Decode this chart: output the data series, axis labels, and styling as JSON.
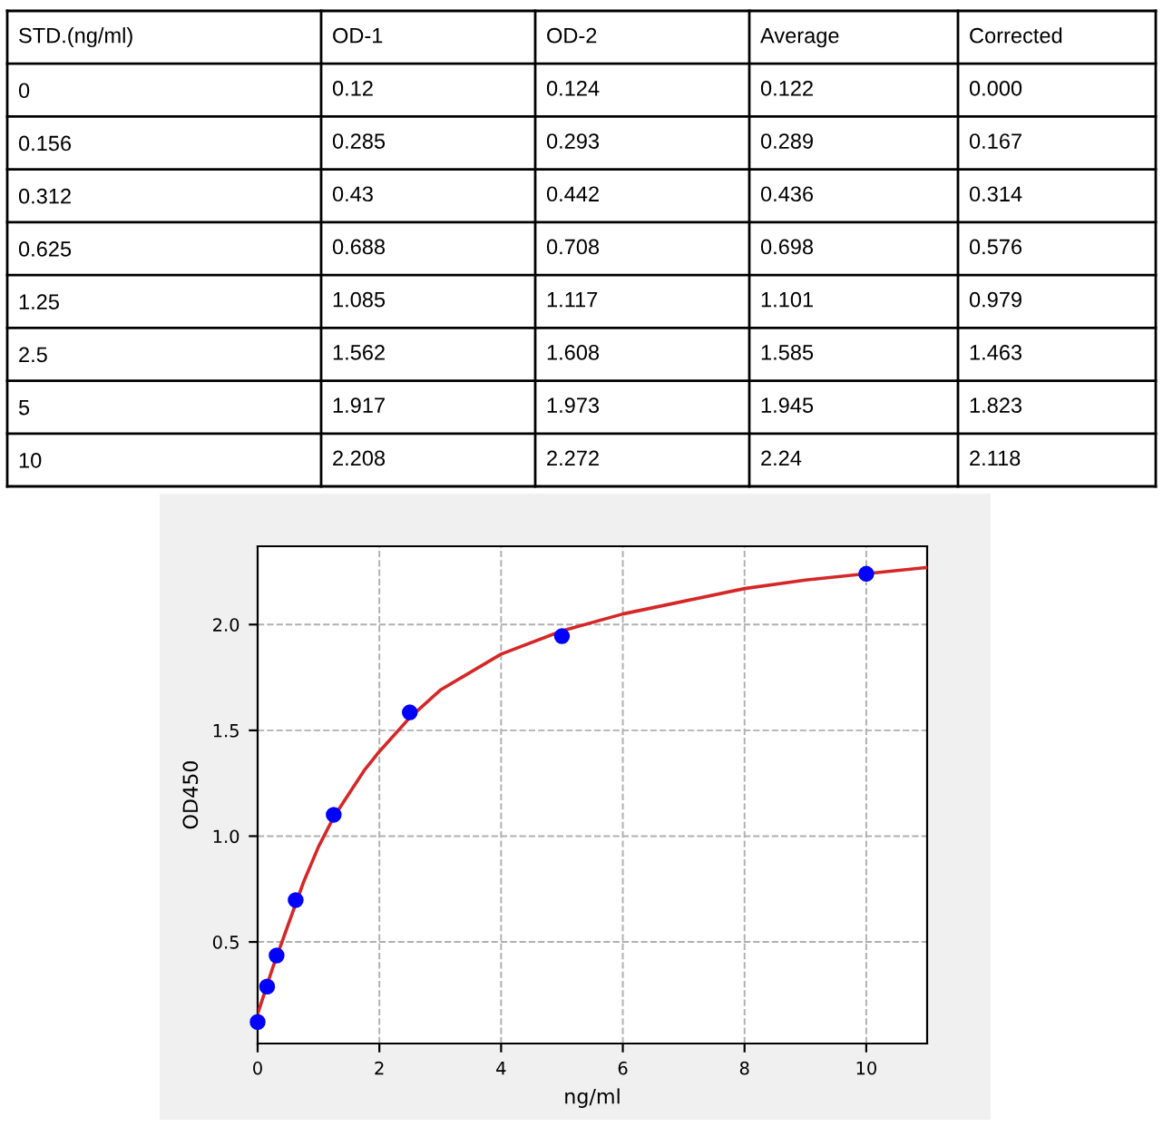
{
  "chart_data": [
    {
      "type": "heatmap",
      "ylabel": "STD.(ng/ml)",
      "categories": [
        "OD-1",
        "OD-2",
        "Average",
        "Corrected"
      ],
      "y_categories": [
        "0",
        "0.156",
        "0.312",
        "0.625",
        "1.25",
        "2.5",
        "5",
        "10"
      ],
      "cells": [
        [
          0.12,
          0.124,
          0.122,
          0.0
        ],
        [
          0.285,
          0.293,
          0.289,
          0.167
        ],
        [
          0.43,
          0.442,
          0.436,
          0.314
        ],
        [
          0.688,
          0.708,
          0.698,
          0.576
        ],
        [
          1.085,
          1.117,
          1.101,
          0.979
        ],
        [
          1.562,
          1.608,
          1.585,
          1.463
        ],
        [
          1.917,
          1.973,
          1.945,
          1.823
        ],
        [
          2.208,
          2.272,
          2.24,
          2.118
        ]
      ],
      "cell_labels": [
        [
          "0.12",
          "0.124",
          "0.122",
          "0.000"
        ],
        [
          "0.285",
          "0.293",
          "0.289",
          "0.167"
        ],
        [
          "0.43",
          "0.442",
          "0.436",
          "0.314"
        ],
        [
          "0.688",
          "0.708",
          "0.698",
          "0.576"
        ],
        [
          "1.085",
          "1.117",
          "1.101",
          "0.979"
        ],
        [
          "1.562",
          "1.608",
          "1.585",
          "1.463"
        ],
        [
          "1.917",
          "1.973",
          "1.945",
          "1.823"
        ],
        [
          "2.208",
          "2.272",
          "2.24",
          "2.118"
        ]
      ]
    },
    {
      "type": "scatter",
      "xlabel": "ng/ml",
      "ylabel": "OD450",
      "xlim": [
        0,
        11
      ],
      "ylim": [
        0.02,
        2.37
      ],
      "xticks": [
        0,
        2,
        4,
        6,
        8,
        10
      ],
      "yticks": [
        0.5,
        {
          "value": 1,
          "label": "1.0"
        },
        1.5,
        {
          "value": 2,
          "label": "2.0"
        }
      ],
      "grid": true,
      "legend": false,
      "series": [
        {
          "type": "line",
          "color": "#d62728",
          "line_style": "solid",
          "marker": "none",
          "x": [
            0,
            0.25,
            0.5,
            0.75,
            1,
            1.25,
            1.5,
            1.75,
            2,
            2.5,
            3,
            4,
            5,
            6,
            7,
            8,
            9,
            10,
            11
          ],
          "values": [
            0.16,
            0.38,
            0.58,
            0.78,
            0.95,
            1.09,
            1.2,
            1.31,
            1.4,
            1.56,
            1.69,
            1.86,
            1.97,
            2.05,
            2.11,
            2.17,
            2.21,
            2.24,
            2.27
          ]
        },
        {
          "type": "scatter",
          "color": "#0000ff",
          "marker": "circle",
          "x": [
            0,
            0.156,
            0.312,
            0.625,
            1.25,
            2.5,
            5,
            10
          ],
          "values": [
            0.122,
            0.289,
            0.436,
            0.698,
            1.101,
            1.585,
            1.945,
            2.24
          ]
        }
      ]
    }
  ]
}
